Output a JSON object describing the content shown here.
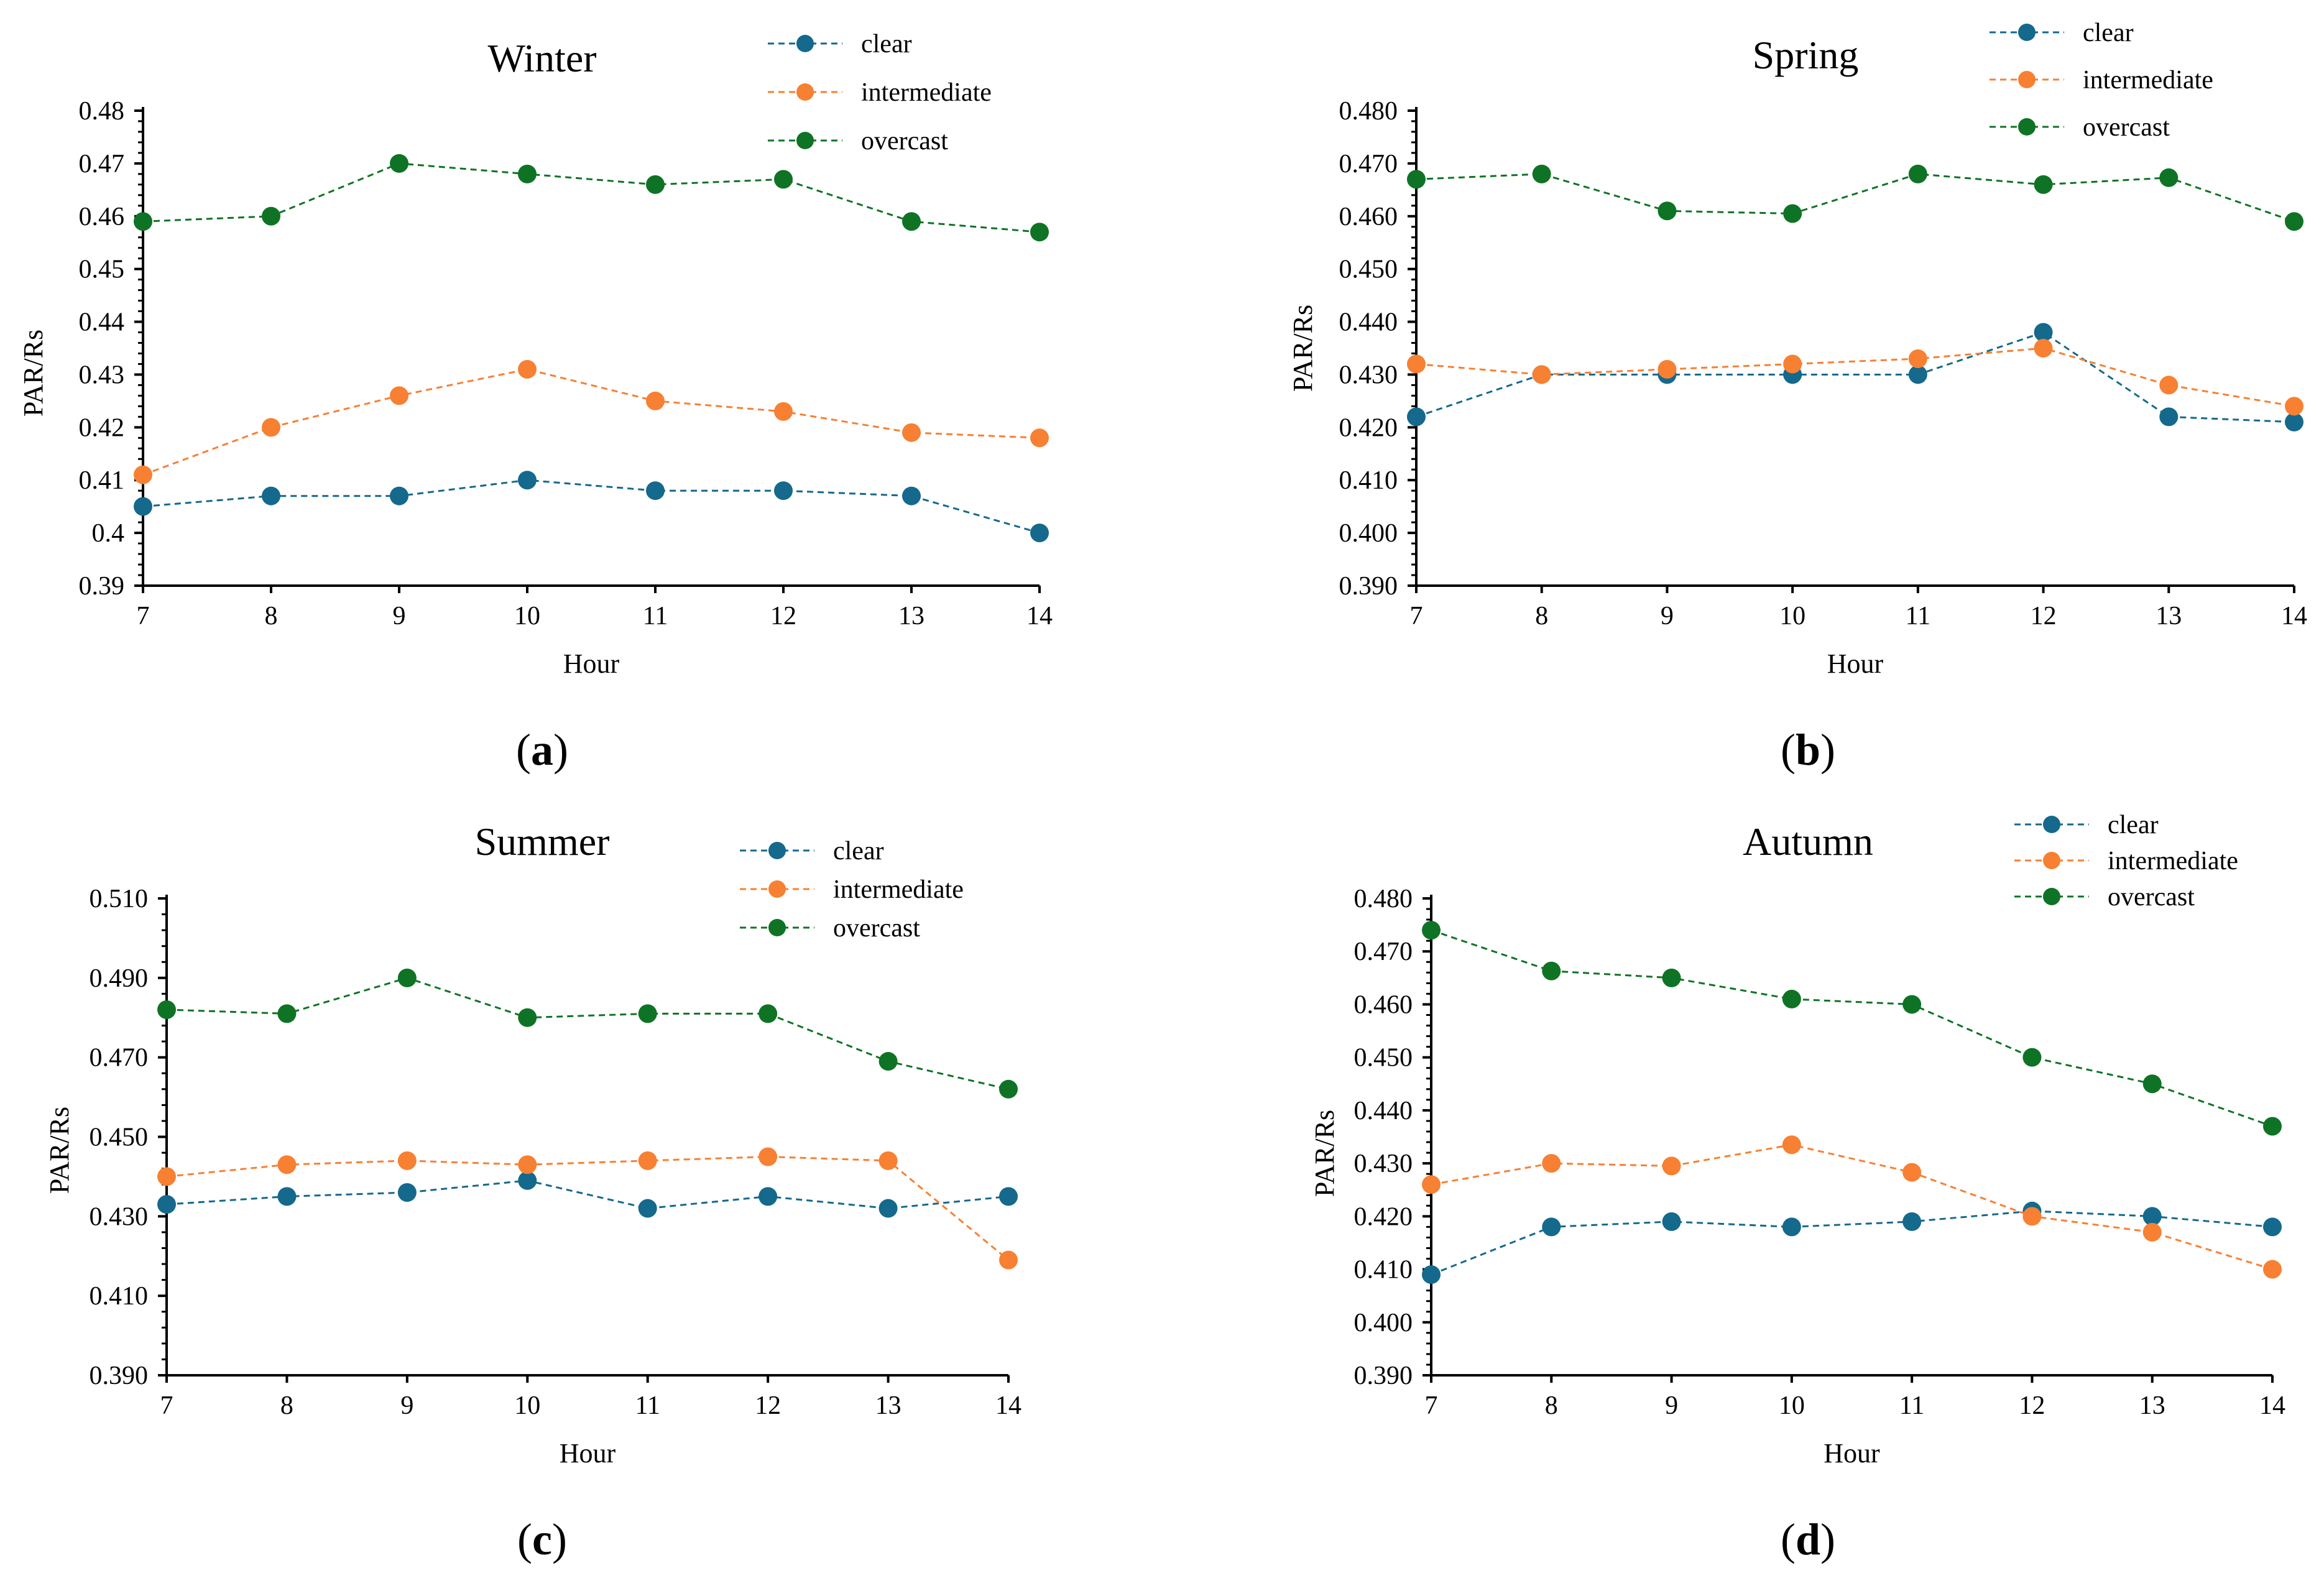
{
  "colors": {
    "clear": "#14698c",
    "intermediate": "#f78033",
    "overcast": "#0f7325",
    "axis": "#000000"
  },
  "chart_data": [
    {
      "type": "line",
      "panel": "a",
      "title": "Winter",
      "xlabel": "Hour",
      "ylabel": "PAR/Rs",
      "x": [
        7,
        8,
        9,
        10,
        11,
        12,
        13,
        14
      ],
      "ylim": [
        0.39,
        0.48
      ],
      "ystep": 0.01,
      "ydecimals": "auto",
      "yticks": [
        "0.39",
        "0.4",
        "0.41",
        "0.42",
        "0.43",
        "0.44",
        "0.45",
        "0.46",
        "0.47",
        "0.48"
      ],
      "series": [
        {
          "name": "clear",
          "key": "clear",
          "values": [
            0.405,
            0.407,
            0.407,
            0.41,
            0.408,
            0.408,
            0.407,
            0.4
          ]
        },
        {
          "name": "intermediate",
          "key": "intermediate",
          "values": [
            0.411,
            0.42,
            0.426,
            0.431,
            0.425,
            0.423,
            0.419,
            0.418
          ]
        },
        {
          "name": "overcast",
          "key": "overcast",
          "values": [
            0.459,
            0.46,
            0.47,
            0.468,
            0.466,
            0.467,
            0.459,
            0.457
          ]
        }
      ],
      "caption": "a",
      "legend": "top-right"
    },
    {
      "type": "line",
      "panel": "b",
      "title": "Spring",
      "xlabel": "Hour",
      "ylabel": "PAR/Rs",
      "x": [
        7,
        8,
        9,
        10,
        11,
        12,
        13,
        14
      ],
      "ylim": [
        0.39,
        0.48
      ],
      "ystep": 0.01,
      "yticks": [
        "0.390",
        "0.400",
        "0.410",
        "0.420",
        "0.430",
        "0.440",
        "0.450",
        "0.460",
        "0.470",
        "0.480"
      ],
      "series": [
        {
          "name": "clear",
          "key": "clear",
          "values": [
            0.422,
            0.43,
            0.43,
            0.43,
            0.43,
            0.438,
            0.422,
            0.421
          ]
        },
        {
          "name": "intermediate",
          "key": "intermediate",
          "values": [
            0.432,
            0.43,
            0.431,
            0.432,
            0.433,
            0.435,
            0.428,
            0.424
          ]
        },
        {
          "name": "overcast",
          "key": "overcast",
          "values": [
            0.467,
            0.468,
            0.461,
            0.4605,
            0.468,
            0.466,
            0.4673,
            0.459
          ]
        }
      ],
      "caption": "b",
      "legend": "top-right"
    },
    {
      "type": "line",
      "panel": "c",
      "title": "Summer",
      "xlabel": "Hour",
      "ylabel": "PAR/Rs",
      "x": [
        7,
        8,
        9,
        10,
        11,
        12,
        13,
        14
      ],
      "ylim": [
        0.39,
        0.51
      ],
      "ystep": 0.02,
      "yticks": [
        "0.390",
        "0.410",
        "0.430",
        "0.450",
        "0.470",
        "0.490",
        "0.510"
      ],
      "series": [
        {
          "name": "clear",
          "key": "clear",
          "values": [
            0.433,
            0.435,
            0.436,
            0.439,
            0.432,
            0.435,
            0.432,
            0.435
          ]
        },
        {
          "name": "intermediate",
          "key": "intermediate",
          "values": [
            0.44,
            0.443,
            0.444,
            0.443,
            0.444,
            0.445,
            0.444,
            0.419
          ]
        },
        {
          "name": "overcast",
          "key": "overcast",
          "values": [
            0.482,
            0.481,
            0.49,
            0.48,
            0.481,
            0.481,
            0.469,
            0.462
          ]
        }
      ],
      "caption": "c",
      "legend": "top-right"
    },
    {
      "type": "line",
      "panel": "d",
      "title": "Autumn",
      "xlabel": "Hour",
      "ylabel": "PAR/Rs",
      "x": [
        7,
        8,
        9,
        10,
        11,
        12,
        13,
        14
      ],
      "ylim": [
        0.39,
        0.48
      ],
      "ystep": 0.01,
      "yticks": [
        "0.390",
        "0.400",
        "0.410",
        "0.420",
        "0.430",
        "0.440",
        "0.450",
        "0.460",
        "0.470",
        "0.480"
      ],
      "series": [
        {
          "name": "clear",
          "key": "clear",
          "values": [
            0.409,
            0.418,
            0.419,
            0.418,
            0.419,
            0.421,
            0.42,
            0.418
          ]
        },
        {
          "name": "intermediate",
          "key": "intermediate",
          "values": [
            0.426,
            0.43,
            0.4295,
            0.4335,
            0.4283,
            0.42,
            0.417,
            0.41
          ]
        },
        {
          "name": "overcast",
          "key": "overcast",
          "values": [
            0.474,
            0.4663,
            0.465,
            0.461,
            0.46,
            0.45,
            0.445,
            0.437
          ]
        }
      ],
      "caption": "d",
      "legend": "top-right"
    }
  ]
}
